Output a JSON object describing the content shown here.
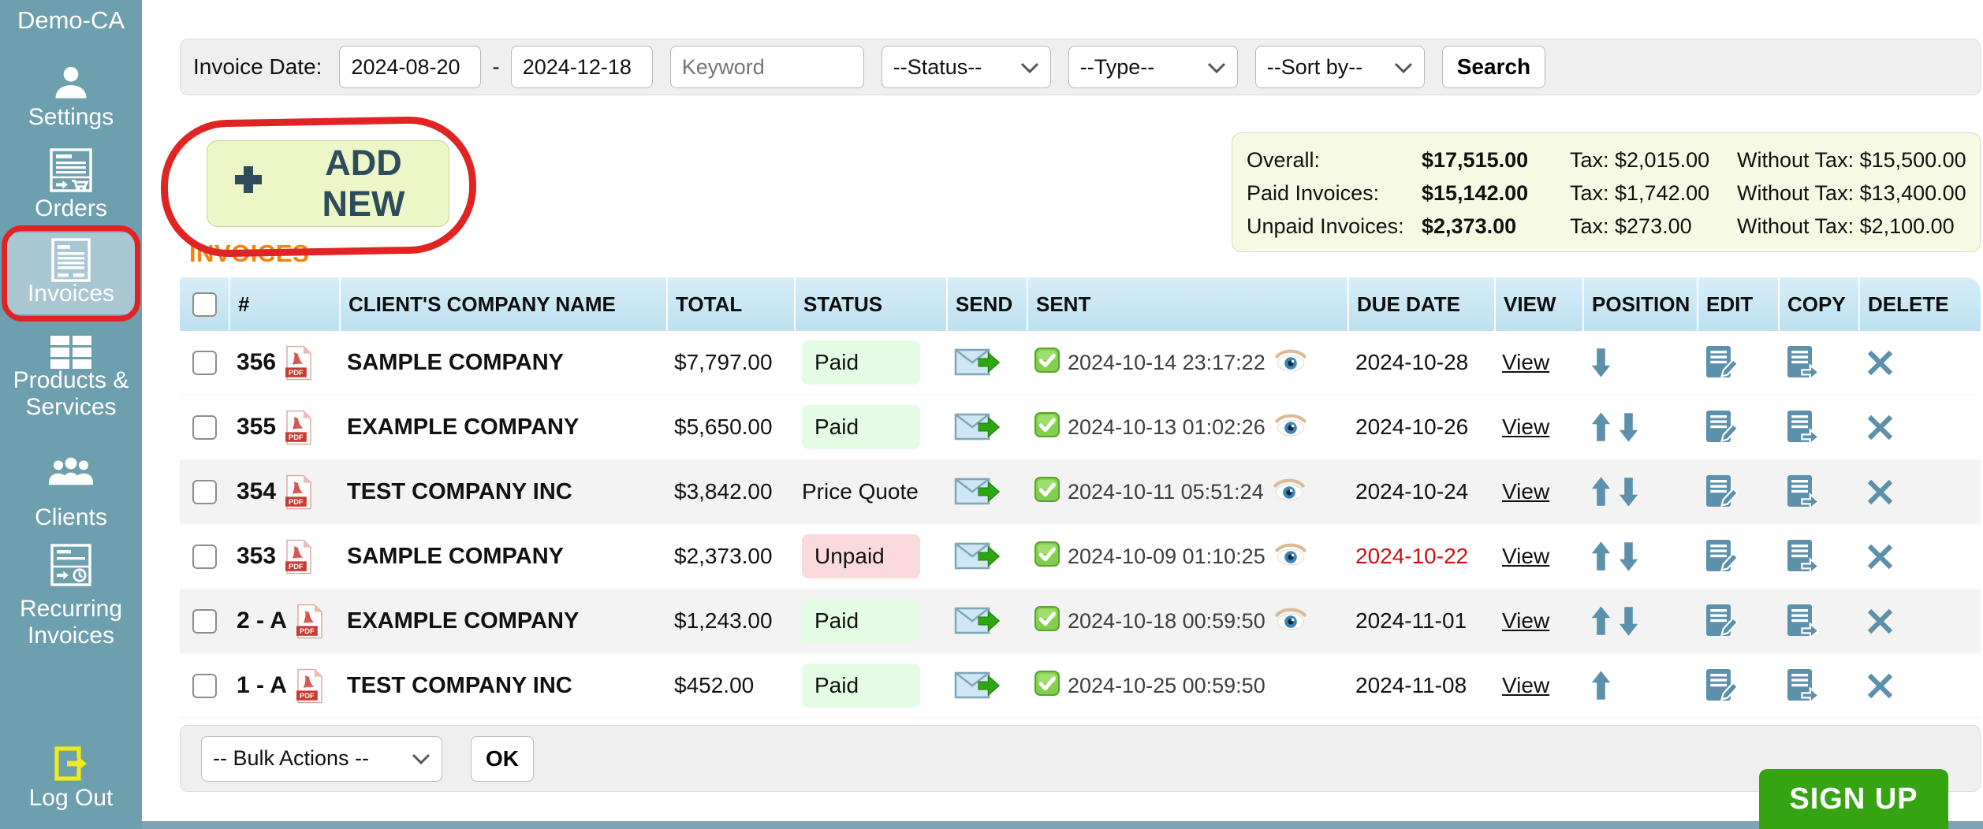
{
  "sidebar": {
    "brand": "Demo-CA",
    "items": [
      {
        "label": "Settings",
        "icon": "user-icon",
        "active": false
      },
      {
        "label": "Orders",
        "icon": "order-doc-icon",
        "active": false
      },
      {
        "label": "Invoices",
        "icon": "invoice-doc-icon",
        "active": true
      },
      {
        "label": "Products & Services",
        "icon": "grid-icon",
        "active": false
      },
      {
        "label": "Clients",
        "icon": "people-icon",
        "active": false
      },
      {
        "label": "Recurring Invoices",
        "icon": "recurring-doc-icon",
        "active": false
      }
    ],
    "logout_label": "Log Out"
  },
  "filters": {
    "invoice_date_label": "Invoice Date:",
    "date_from": "2024-08-20",
    "date_separator": "-",
    "date_to": "2024-12-18",
    "keyword_placeholder": "Keyword",
    "status_select": "--Status--",
    "type_select": "--Type--",
    "sort_select": "--Sort by--",
    "search_button": "Search"
  },
  "add_new_label": "ADD NEW",
  "summary": {
    "rows": [
      {
        "label": "Overall:",
        "amount": "$17,515.00",
        "tax": "Tax: $2,015.00",
        "without_tax": "Without Tax: $15,500.00"
      },
      {
        "label": "Paid Invoices:",
        "amount": "$15,142.00",
        "tax": "Tax: $1,742.00",
        "without_tax": "Without Tax: $13,400.00"
      },
      {
        "label": "Unpaid Invoices:",
        "amount": "$2,373.00",
        "tax": "Tax: $273.00",
        "without_tax": "Without Tax: $2,100.00"
      }
    ]
  },
  "section_title": "INVOICES",
  "table": {
    "headers": [
      "",
      "#",
      "CLIENT'S COMPANY NAME",
      "TOTAL",
      "STATUS",
      "SEND",
      "SENT",
      "DUE DATE",
      "VIEW",
      "POSITION",
      "EDIT",
      "COPY",
      "DELETE"
    ],
    "pdf_icon_label": "PDF",
    "view_label": "View",
    "rows": [
      {
        "number": "356",
        "client": "SAMPLE COMPANY",
        "total": "$7,797.00",
        "status": {
          "label": "Paid",
          "style": "paid-select"
        },
        "sent": "2024-10-14 23:17:22",
        "seen": true,
        "due": "2024-10-28",
        "due_overdue": false,
        "position": "down"
      },
      {
        "number": "355",
        "client": "EXAMPLE COMPANY",
        "total": "$5,650.00",
        "status": {
          "label": "Paid",
          "style": "paid-select"
        },
        "sent": "2024-10-13 01:02:26",
        "seen": true,
        "due": "2024-10-26",
        "due_overdue": false,
        "position": "updown"
      },
      {
        "number": "354",
        "client": "TEST COMPANY INC",
        "total": "$3,842.00",
        "status": {
          "label": "Price Quote",
          "style": "text"
        },
        "sent": "2024-10-11 05:51:24",
        "seen": true,
        "due": "2024-10-24",
        "due_overdue": false,
        "position": "updown"
      },
      {
        "number": "353",
        "client": "SAMPLE COMPANY",
        "total": "$2,373.00",
        "status": {
          "label": "Unpaid",
          "style": "unpaid-select"
        },
        "sent": "2024-10-09 01:10:25",
        "seen": true,
        "due": "2024-10-22",
        "due_overdue": true,
        "position": "updown"
      },
      {
        "number": "2 - A",
        "client": "EXAMPLE COMPANY",
        "total": "$1,243.00",
        "status": {
          "label": "Paid",
          "style": "paid-select"
        },
        "sent": "2024-10-18 00:59:50",
        "seen": true,
        "due": "2024-11-01",
        "due_overdue": false,
        "position": "updown"
      },
      {
        "number": "1 - A",
        "client": "TEST COMPANY INC",
        "total": "$452.00",
        "status": {
          "label": "Paid",
          "style": "paid-select"
        },
        "sent": "2024-10-25 00:59:50",
        "seen": false,
        "due": "2024-11-08",
        "due_overdue": false,
        "position": "up"
      }
    ]
  },
  "bulk": {
    "select_label": "-- Bulk Actions --",
    "ok_label": "OK"
  },
  "signup_label": "SIGN UP",
  "colors": {
    "sidebar-teal": "#6E9FAF",
    "sidebar-active": "#A8C7D3",
    "accent-orange": "#F5820B",
    "header-blue-top": "#D7EEF9",
    "header-blue-bottom": "#BDE0EF",
    "row-shade": "#F3F3F3",
    "paid-bg": "#E4FCE4",
    "unpaid-bg": "#FBDADC",
    "overdue-red": "#CC1111",
    "icon-blue": "#5D90AA",
    "signup-green": "#36A412",
    "annotation-red": "#E02424",
    "addnew-bg": "#EDF6C6",
    "addnew-text": "#2E4D5C",
    "summary-bg": "#F6FAE3",
    "bar-gray": "#EFEFEF",
    "logout-yellow": "#F0EC1A",
    "bottom-strip": "#7CA6B4"
  }
}
